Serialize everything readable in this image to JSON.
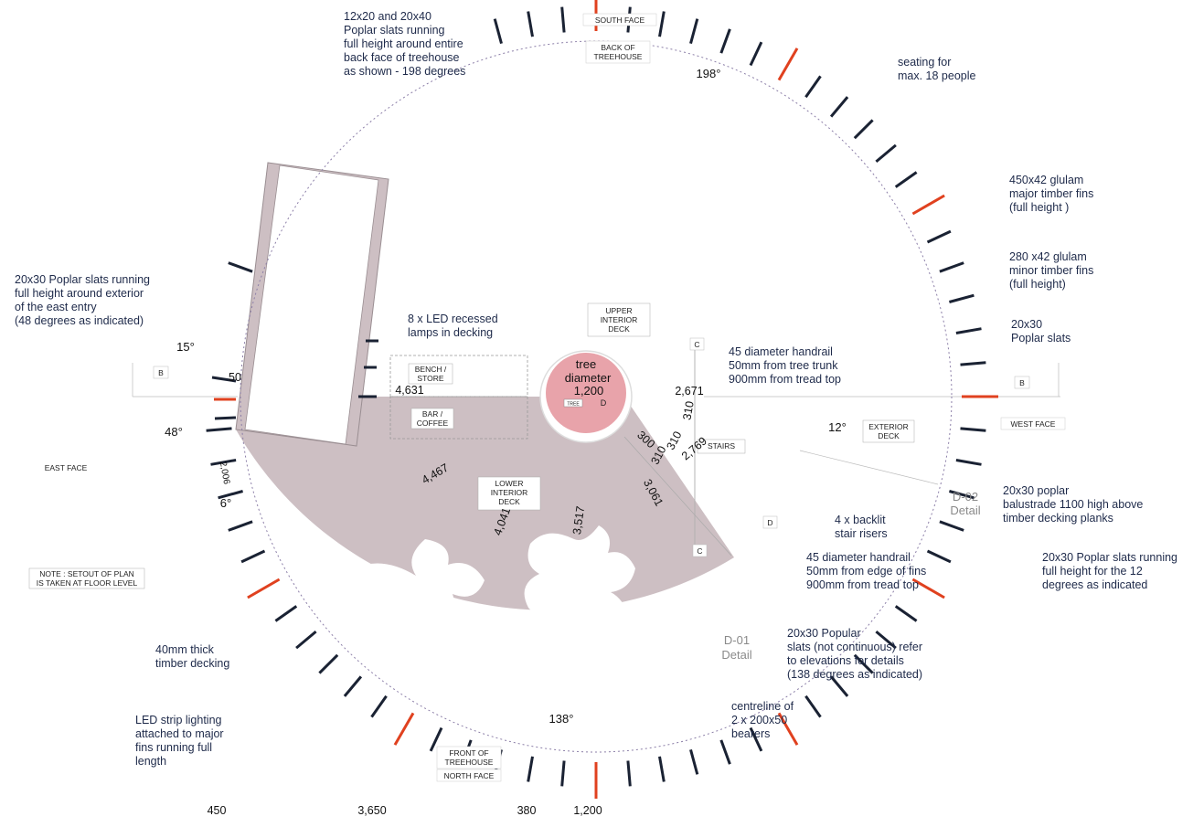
{
  "colors": {
    "fin_major": "#e0411f",
    "fin_minor": "#1a2233",
    "deck_fill": "#cdbfc3",
    "tree_fill": "#e8a3aa",
    "note_text": "#1e2a4a"
  },
  "faces": {
    "south": "SOUTH  FACE",
    "north": "NORTH FACE",
    "east": "EAST  FACE",
    "west": "WEST  FACE",
    "back": [
      "BACK OF",
      "TREEHOUSE"
    ],
    "front": [
      "FRONT OF",
      "TREEHOUSE"
    ]
  },
  "tree": {
    "line1": "tree",
    "line2": "diameter",
    "line3": "1,200",
    "tag": "TREE",
    "d": "D"
  },
  "zones": {
    "upper_deck": [
      "UPPER",
      "INTERIOR",
      "DECK"
    ],
    "lower_deck": [
      "LOWER",
      "INTERIOR",
      "DECK"
    ],
    "bench": [
      "BENCH /",
      "STORE"
    ],
    "bar": [
      "BAR /",
      "COFFEE"
    ],
    "stairs": "STAIRS",
    "exterior_deck": [
      "EXTERIOR",
      "DECK"
    ],
    "setout_note": [
      "NOTE : SETOUT OF PLAN",
      "IS TAKEN AT FLOOR LEVEL"
    ]
  },
  "section_marks": {
    "b_left": "B",
    "b_right": "B",
    "c_top": "C",
    "c_bottom": "C",
    "d": "D"
  },
  "degrees": {
    "d198": "198°",
    "d15": "15°",
    "d48": "48°",
    "d6": "6°",
    "d12": "12°",
    "d138": "138°"
  },
  "dimensions": {
    "d50": "50",
    "d4631": "4,631",
    "d2671": "2,671",
    "d300": "300",
    "d310a": "310",
    "d310b": "310",
    "d310c": "310",
    "d2769": "2,769",
    "d4467": "4,467",
    "d2006": "2,006",
    "d4041": "4,041",
    "d3517": "3,517",
    "d3061": "3,061",
    "bottom": [
      "450",
      "3,650",
      "380",
      "1,200"
    ]
  },
  "details": {
    "d02": [
      "D-02",
      "Detail"
    ],
    "d01": [
      "D-01",
      "Detail"
    ]
  },
  "notes": {
    "poplar_back": [
      "12x20 and 20x40",
      "Poplar slats running",
      "full height around entire",
      "back  face of treehouse",
      "as shown - 198 degrees"
    ],
    "seating": [
      "seating for",
      "max. 18 people"
    ],
    "glulam_major": [
      "450x42 glulam",
      "major timber fins",
      "(full height )"
    ],
    "glulam_minor": [
      "280 x42 glulam",
      "minor timber fins",
      "(full height)"
    ],
    "poplar_slats": [
      "20x30",
      "Poplar slats"
    ],
    "east_entry": [
      "20x30 Poplar slats running",
      "full height around exterior",
      "of the east entry",
      "(48 degrees as indicated)"
    ],
    "led_lamps": [
      "8 x LED  recessed",
      "lamps in decking"
    ],
    "handrail_trunk": [
      "45 diameter handrail",
      "50mm from tree trunk",
      "900mm from tread top"
    ],
    "balustrade": [
      "20x30  poplar",
      "balustrade 1100 high above",
      "timber decking planks"
    ],
    "backlit": [
      "4 x backlit",
      "stair risers"
    ],
    "handrail_fins": [
      "45 diameter handrail",
      "50mm from edge of fins",
      "900mm from tread top"
    ],
    "poplar_12": [
      "20x30 Poplar slats running",
      "full height for the 12",
      "degrees as indicated"
    ],
    "timber_decking": [
      "40mm thick",
      "timber decking"
    ],
    "popular_slats": [
      "20x30  Popular",
      "slats (not continuous) refer",
      "to elevations for details",
      "(138 degrees as indicated)"
    ],
    "led_strip": [
      "LED strip lighting",
      "attached to major",
      "fins running full",
      "length"
    ],
    "centreline": [
      "centreline of",
      "2 x 200x50",
      "bearers"
    ]
  }
}
